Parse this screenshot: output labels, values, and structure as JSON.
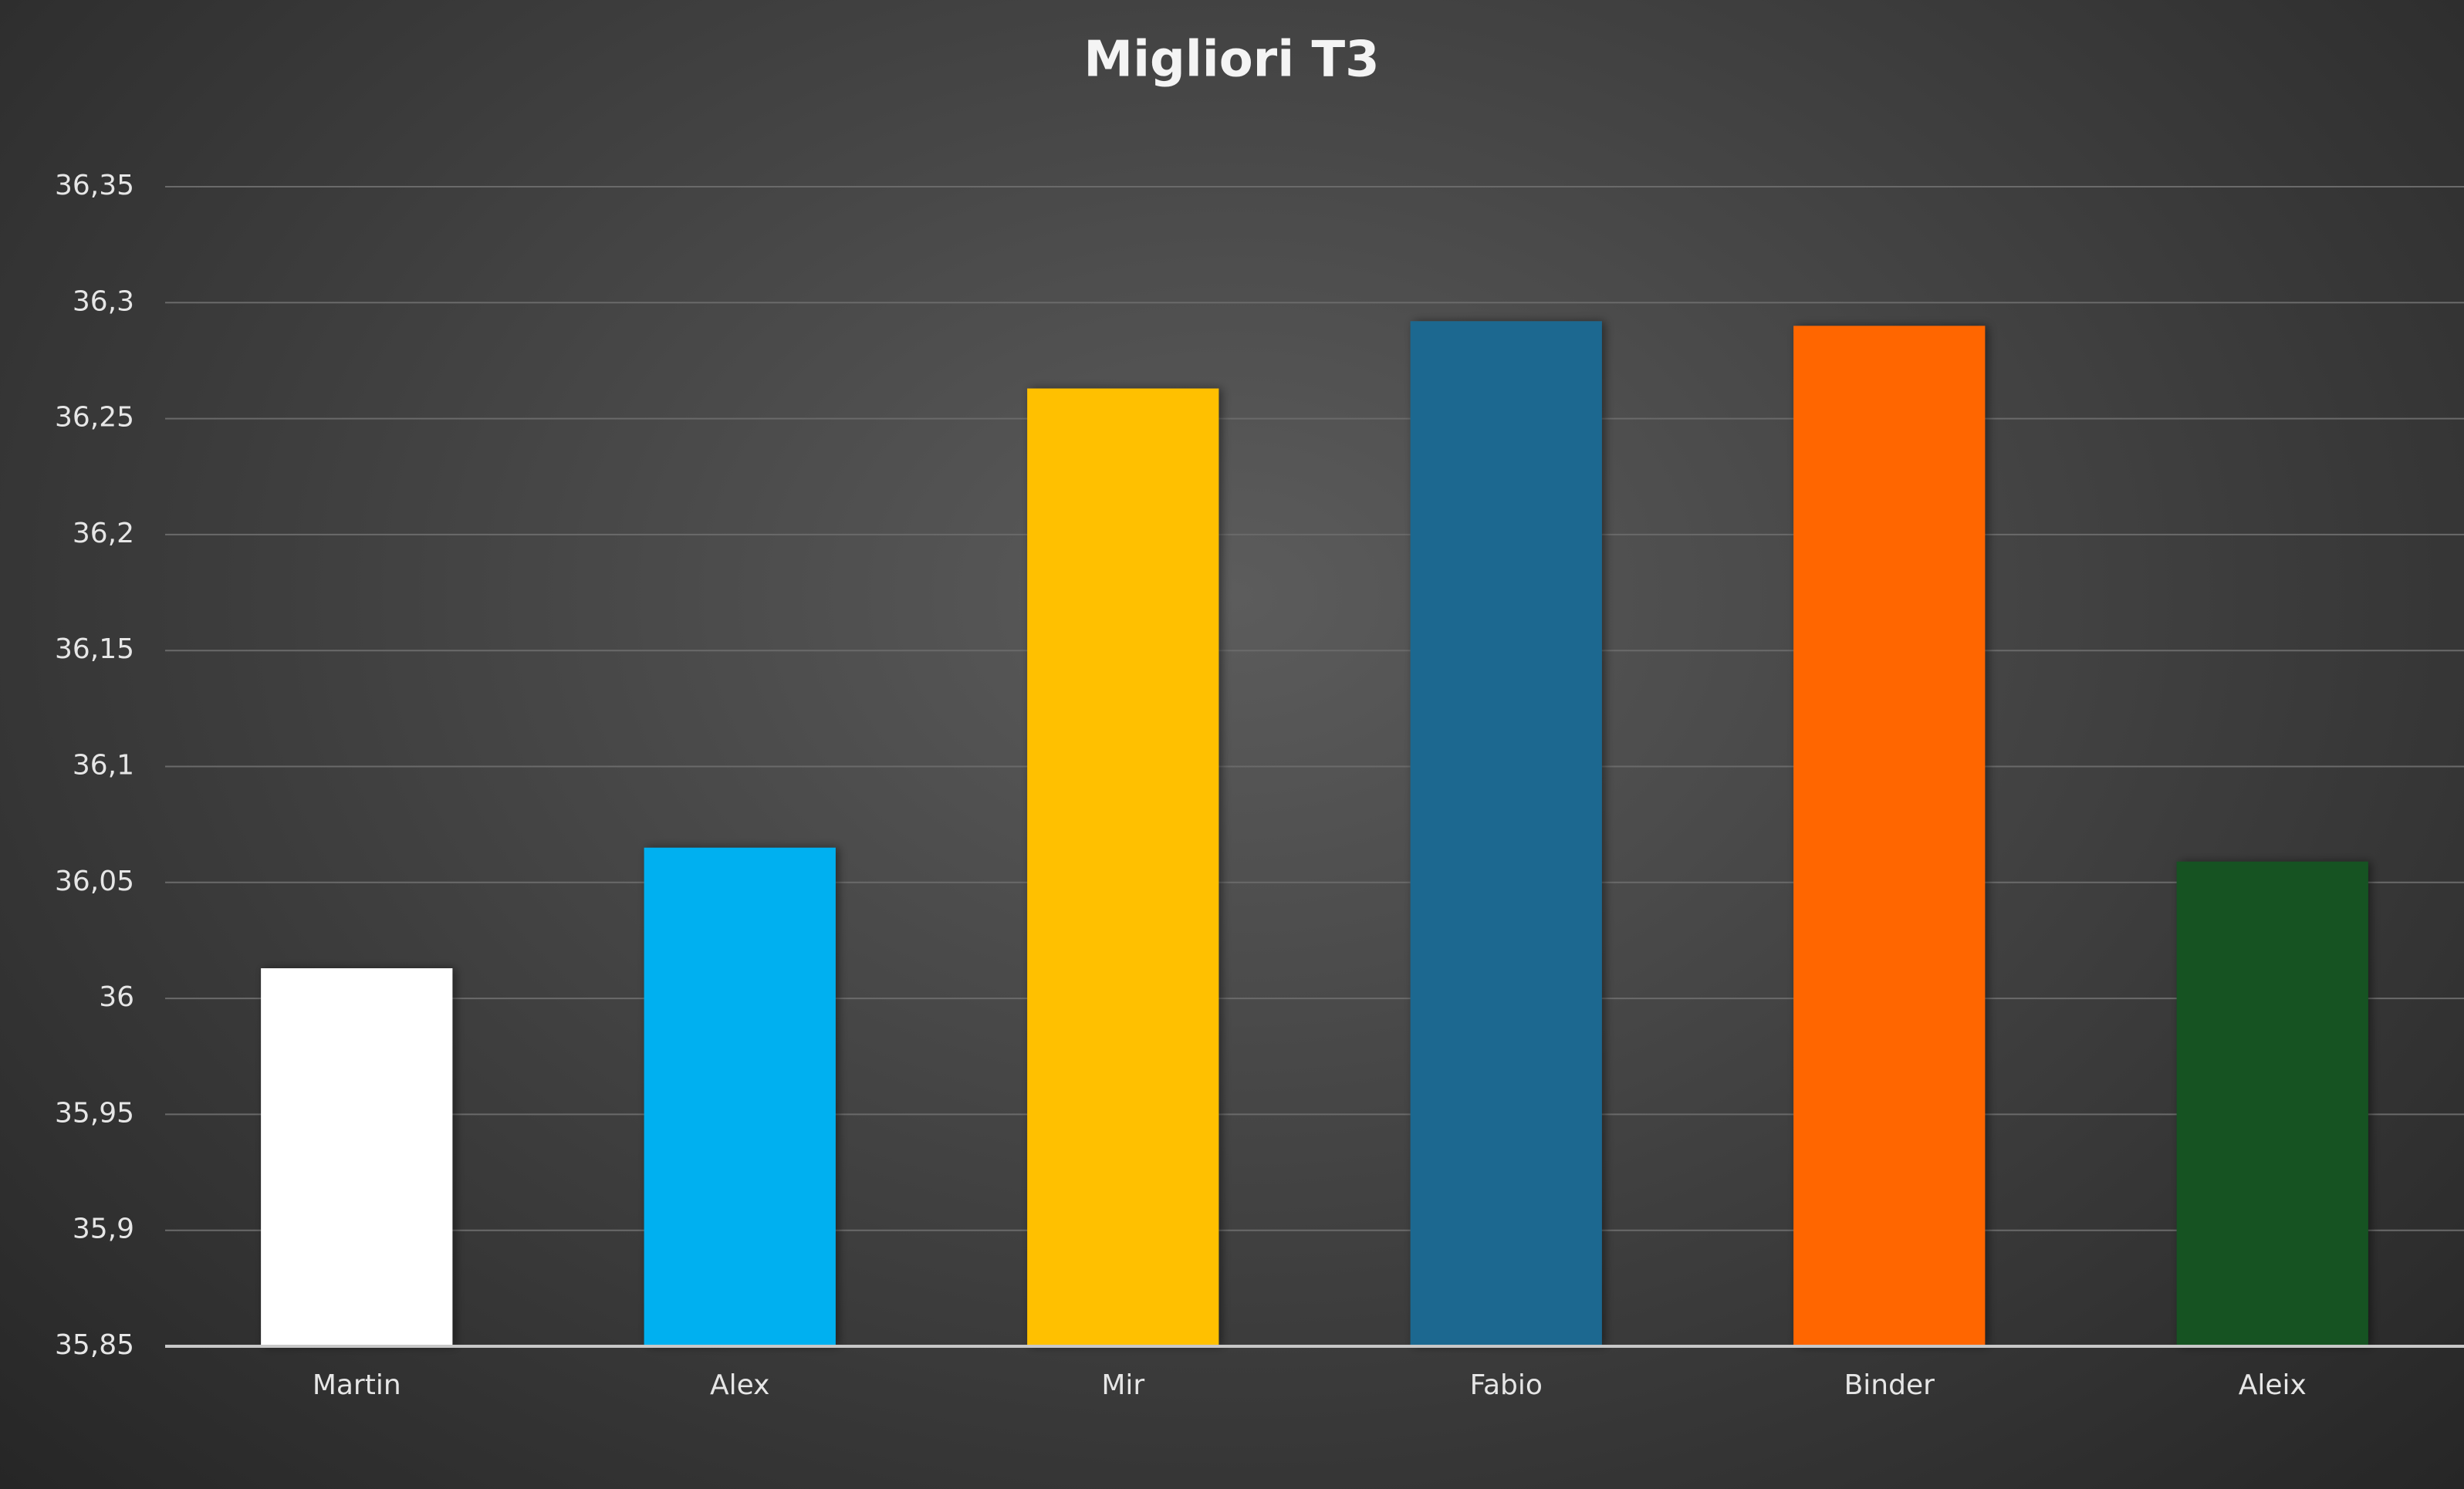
{
  "chart_data": {
    "type": "bar",
    "title": "Migliori T3",
    "categories": [
      "Martin",
      "Alex",
      "Mir",
      "Fabio",
      "Binder",
      "Aleix"
    ],
    "values": [
      36.013,
      36.065,
      36.263,
      36.292,
      36.29,
      36.059
    ],
    "colors": [
      "#ffffff",
      "#00b0f0",
      "#ffc000",
      "#1b6890",
      "#ff6600",
      "#145222"
    ],
    "ylim": [
      35.85,
      36.35
    ],
    "yticks": [
      {
        "value": 35.85,
        "label": "35,85"
      },
      {
        "value": 35.9,
        "label": "35,9"
      },
      {
        "value": 35.95,
        "label": "35,95"
      },
      36,
      {
        "value": 36.05,
        "label": "36,05"
      },
      {
        "value": 36.1,
        "label": "36,1"
      },
      {
        "value": 36.15,
        "label": "36,15"
      },
      {
        "value": 36.2,
        "label": "36,2"
      },
      {
        "value": 36.25,
        "label": "36,25"
      },
      {
        "value": 36.3,
        "label": "36,3"
      },
      {
        "value": 36.35,
        "label": "36,35"
      }
    ],
    "grid": true
  }
}
